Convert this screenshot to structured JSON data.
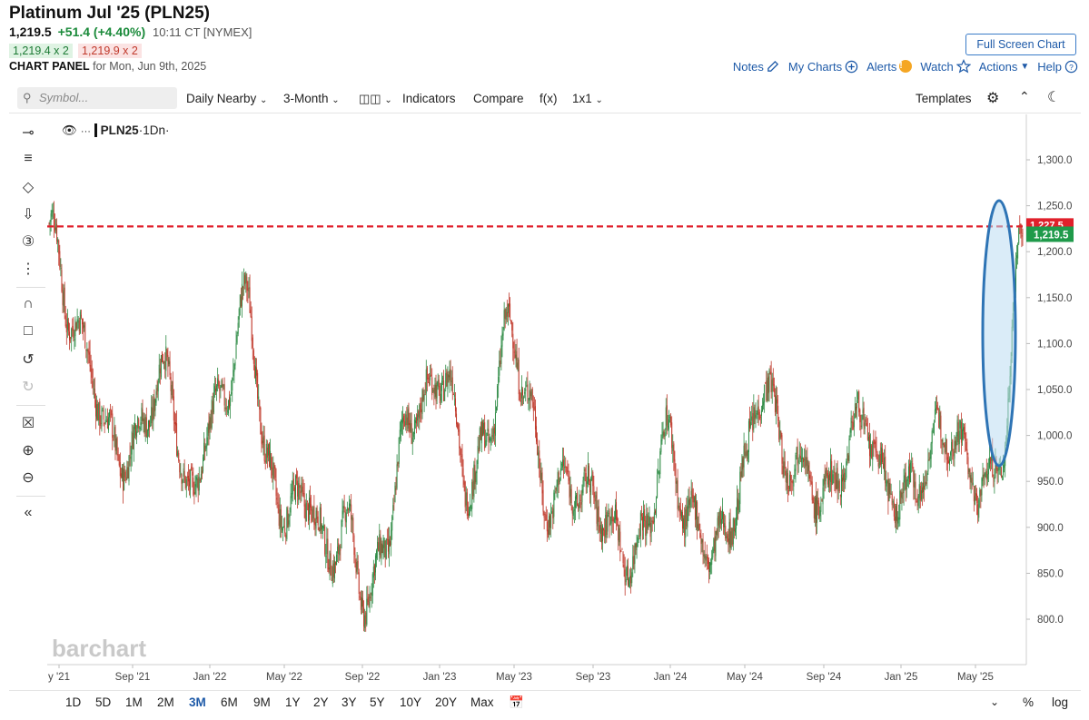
{
  "header": {
    "title": "Platinum Jul '25 (PLN25)",
    "last": "1,219.5",
    "change": "+51.4 (+4.40%)",
    "time": "10:11 CT [NYMEX]",
    "bid": "1,219.4 x 2",
    "ask": "1,219.9 x 2",
    "panel_label": "CHART PANEL",
    "panel_date": "for Mon, Jun 9th, 2025"
  },
  "top_actions": {
    "full_screen": "Full Screen Chart",
    "notes": "Notes",
    "my_charts": "My Charts",
    "alerts": "Alerts",
    "watch": "Watch",
    "actions": "Actions",
    "help": "Help"
  },
  "toolbar": {
    "search_placeholder": "Symbol...",
    "period": "Daily Nearby",
    "range": "3-Month",
    "indicators": "Indicators",
    "compare": "Compare",
    "fx": "f(x)",
    "layout": "1x1",
    "templates": "Templates"
  },
  "legend": {
    "symbol": "PLN25",
    "interval": "·1Dn·"
  },
  "watermark": "barchart",
  "timeframes": [
    "1D",
    "5D",
    "1M",
    "2M",
    "3M",
    "6M",
    "9M",
    "1Y",
    "2Y",
    "3Y",
    "5Y",
    "10Y",
    "20Y",
    "Max"
  ],
  "active_timeframe": "3M",
  "footer_right": {
    "percent": "%",
    "log": "log"
  },
  "colors": {
    "up": "#2e8b45",
    "down": "#c0392b",
    "accent": "#1e5aa8",
    "dashed": "#e0202b",
    "highlight_fill": "#bcdcf3",
    "highlight_stroke": "#2e74b5"
  },
  "chart_data": {
    "type": "candlestick",
    "title": "PLN25 ·1Dn·",
    "x_tick_labels": [
      "y '21",
      "Sep '21",
      "Jan '22",
      "May '22",
      "Sep '22",
      "Jan '23",
      "May '23",
      "Sep '23",
      "Jan '24",
      "May '24",
      "Sep '24",
      "Jan '25",
      "May '25"
    ],
    "y_ticks": [
      800,
      850,
      900,
      950,
      1000,
      1050,
      1100,
      1150,
      1200,
      1250,
      1300
    ],
    "y_tick_labels": [
      "800.0",
      "850.0",
      "900.0",
      "950.0",
      "1,000.0",
      "1,050.0",
      "1,100.0",
      "1,150.0",
      "1,200.0",
      "1,250.0",
      "1,300.0"
    ],
    "ylim": [
      755,
      1330
    ],
    "last_price": 1219.5,
    "last_price_label": "1,219.5",
    "reference_line": 1227.5,
    "reference_line_label": "1,227.5",
    "approx_path": [
      {
        "date": "2021-05",
        "price": 1230
      },
      {
        "date": "2021-06",
        "price": 1120
      },
      {
        "date": "2021-07",
        "price": 1080
      },
      {
        "date": "2021-08",
        "price": 1010
      },
      {
        "date": "2021-09",
        "price": 980
      },
      {
        "date": "2021-10",
        "price": 1020
      },
      {
        "date": "2021-11",
        "price": 1060
      },
      {
        "date": "2021-12",
        "price": 935
      },
      {
        "date": "2022-01",
        "price": 1020
      },
      {
        "date": "2022-02",
        "price": 1050
      },
      {
        "date": "2022-03",
        "price": 1140
      },
      {
        "date": "2022-04",
        "price": 960
      },
      {
        "date": "2022-05",
        "price": 930
      },
      {
        "date": "2022-06",
        "price": 940
      },
      {
        "date": "2022-07",
        "price": 850
      },
      {
        "date": "2022-08",
        "price": 900
      },
      {
        "date": "2022-09",
        "price": 830
      },
      {
        "date": "2022-10",
        "price": 900
      },
      {
        "date": "2022-11",
        "price": 1000
      },
      {
        "date": "2022-12",
        "price": 1030
      },
      {
        "date": "2023-01",
        "price": 1080
      },
      {
        "date": "2023-02",
        "price": 960
      },
      {
        "date": "2023-03",
        "price": 980
      },
      {
        "date": "2023-04",
        "price": 1100
      },
      {
        "date": "2023-05",
        "price": 1060
      },
      {
        "date": "2023-06",
        "price": 940
      },
      {
        "date": "2023-07",
        "price": 950
      },
      {
        "date": "2023-08",
        "price": 920
      },
      {
        "date": "2023-09",
        "price": 910
      },
      {
        "date": "2023-10",
        "price": 880
      },
      {
        "date": "2023-11",
        "price": 900
      },
      {
        "date": "2023-12",
        "price": 990
      },
      {
        "date": "2024-01",
        "price": 910
      },
      {
        "date": "2024-02",
        "price": 890
      },
      {
        "date": "2024-03",
        "price": 900
      },
      {
        "date": "2024-04",
        "price": 960
      },
      {
        "date": "2024-05",
        "price": 1050
      },
      {
        "date": "2024-06",
        "price": 980
      },
      {
        "date": "2024-07",
        "price": 980
      },
      {
        "date": "2024-08",
        "price": 930
      },
      {
        "date": "2024-09",
        "price": 960
      },
      {
        "date": "2024-10",
        "price": 1020
      },
      {
        "date": "2024-11",
        "price": 960
      },
      {
        "date": "2024-12",
        "price": 940
      },
      {
        "date": "2025-01",
        "price": 950
      },
      {
        "date": "2025-02",
        "price": 1000
      },
      {
        "date": "2025-03",
        "price": 990
      },
      {
        "date": "2025-04",
        "price": 950
      },
      {
        "date": "2025-05",
        "price": 980
      },
      {
        "date": "2025-06",
        "price": 1219.5
      }
    ]
  }
}
